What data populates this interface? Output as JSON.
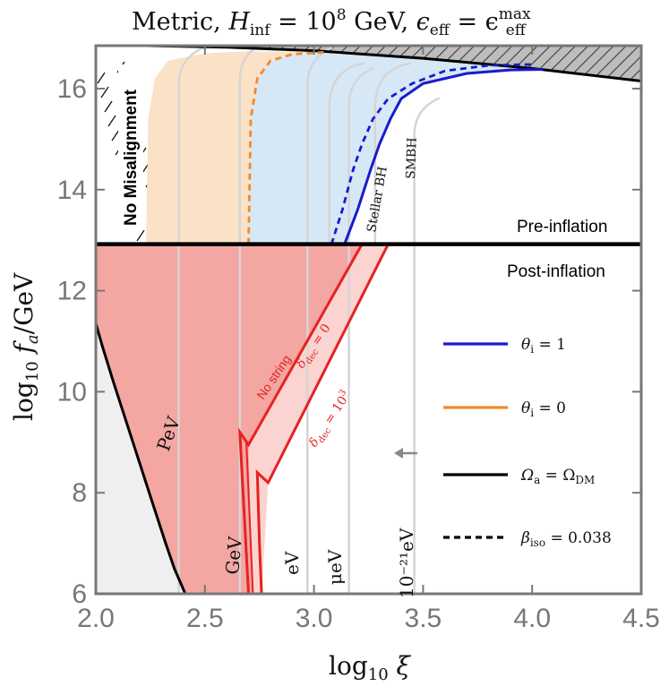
{
  "chart_data": {
    "type": "area",
    "title": "Metric,  H_inf = 10^8 GeV,  ε_eff = ε_eff^max",
    "title_parts": {
      "prefix": "Metric,  ",
      "h": "H",
      "h_sub": "inf",
      "h_eq": " = 10",
      "h_exp": "8",
      "h_unit": " GeV,  ",
      "eps": "ϵ",
      "eps_sub": "eff",
      "eps_eq": " = ϵ",
      "eps_sup": "max",
      "eps_sub2": "eff"
    },
    "xlabel": "log10 ξ",
    "ylabel": "log10 fa/GeV",
    "xlim": [
      2.0,
      4.5
    ],
    "ylim": [
      6,
      16.85
    ],
    "x_ticks": [
      "2.0",
      "2.5",
      "3.0",
      "3.5",
      "4.0",
      "4.5"
    ],
    "x_tick_values": [
      2.0,
      2.5,
      3.0,
      3.5,
      4.0,
      4.5
    ],
    "y_ticks": [
      "6",
      "8",
      "10",
      "12",
      "14",
      "16"
    ],
    "y_tick_values": [
      6,
      8,
      10,
      12,
      14,
      16
    ],
    "grid": false,
    "legend_position": "right",
    "divider_y": 12.92,
    "region_labels": {
      "no_misalignment": "No Misalignment",
      "pre_inflation": "Pre-inflation",
      "post_inflation": "Post-inflation",
      "stellar_bh": "Stellar BH",
      "smbh": "SMBH",
      "no_string": "No string"
    },
    "delta_labels": {
      "d0": "δdec = 0",
      "d3": "δdec = 10³"
    },
    "mass_labels": [
      "PeV",
      "GeV",
      "eV",
      "μeV",
      "10⁻²¹eV"
    ],
    "mass_contours": [
      {
        "label": "PeV",
        "x": [
          1.99,
          2.03,
          2.08,
          2.14,
          2.2,
          2.26,
          2.32,
          2.36,
          2.41
        ],
        "y": [
          11.5,
          10.9,
          10.2,
          9.4,
          8.6,
          7.8,
          7.0,
          6.5,
          6.0
        ]
      },
      {
        "label": "GeV",
        "x": [
          2.65,
          2.655,
          2.66,
          2.665,
          2.67
        ],
        "y": [
          6.0,
          6.7,
          7.4,
          8.2,
          9.0
        ]
      },
      {
        "label": "eV",
        "x": [
          2.97,
          2.97
        ],
        "y": [
          6.0,
          16.85
        ]
      },
      {
        "label": "μeV",
        "x": [
          3.16,
          3.16
        ],
        "y": [
          6.0,
          16.85
        ]
      },
      {
        "label": "10⁻²¹eV",
        "x": [
          3.46,
          3.46
        ],
        "y": [
          6.0,
          16.85
        ]
      }
    ],
    "omega_dm_line": {
      "x": [
        2.23,
        2.6,
        3.0,
        3.5,
        4.0,
        4.5
      ],
      "y": [
        16.85,
        16.82,
        16.75,
        16.6,
        16.4,
        16.15
      ]
    },
    "theta_1": {
      "solid": {
        "x": [
          3.14,
          3.2,
          3.26,
          3.3,
          3.35,
          3.4,
          3.5,
          3.7,
          3.9,
          4.05
        ],
        "y": [
          12.92,
          13.6,
          14.4,
          14.9,
          15.4,
          15.8,
          16.1,
          16.3,
          16.37,
          16.38
        ]
      },
      "dashed": {
        "x": [
          3.08,
          3.13,
          3.18,
          3.22,
          3.27,
          3.34,
          3.45,
          3.6,
          3.8,
          4.0
        ],
        "y": [
          12.92,
          13.6,
          14.4,
          14.9,
          15.4,
          15.8,
          16.1,
          16.35,
          16.46,
          16.48
        ]
      }
    },
    "theta_0": {
      "fill_edge": {
        "x": [
          2.23,
          2.24,
          2.27,
          2.33,
          2.5,
          2.7
        ],
        "y": [
          12.92,
          15.4,
          16.2,
          16.55,
          16.7,
          16.74
        ]
      },
      "dashed": {
        "x": [
          2.7,
          2.71,
          2.74,
          2.8,
          2.9,
          3.05
        ],
        "y": [
          12.92,
          15.4,
          16.2,
          16.55,
          16.68,
          16.72
        ]
      }
    },
    "no_string_region": {
      "top": {
        "x": [
          2.0,
          3.22
        ],
        "y": [
          12.92,
          12.92
        ]
      },
      "diag": {
        "x": [
          3.22,
          2.7
        ],
        "y": [
          12.92,
          8.95
        ]
      },
      "bottom_right": {
        "x": [
          2.72,
          2.7
        ],
        "y": [
          6.0,
          8.95
        ]
      }
    },
    "delta_region": {
      "diag_upper": {
        "x": [
          3.22,
          2.7
        ],
        "y": [
          12.92,
          8.95
        ]
      },
      "diag_lower": {
        "x": [
          3.34,
          2.79
        ],
        "y": [
          12.92,
          8.2
        ]
      },
      "vertical_left": {
        "x": [
          2.72,
          2.74
        ],
        "y": [
          6.0,
          8.95
        ]
      },
      "vertical_right": {
        "x": [
          2.74,
          2.79
        ],
        "y": [
          6.0,
          8.2
        ]
      }
    },
    "legend": [
      {
        "label": "θi = 1",
        "sym": "θ",
        "sub": "i",
        "eq": " = 1",
        "color": "#1a1acc",
        "style": "solid"
      },
      {
        "label": "θi = 0",
        "sym": "θ",
        "sub": "i",
        "eq": " = 0",
        "color": "#f08a2c",
        "style": "solid"
      },
      {
        "label": "Ωa = ΩDM",
        "sym": "Ω",
        "sub": "a",
        "eq": " = Ω",
        "sub2": "DM",
        "color": "#000000",
        "style": "solid"
      },
      {
        "label": "βiso = 0.038",
        "sym": "β",
        "sub": "iso",
        "eq": " = 0.038",
        "color": "#000000",
        "style": "dashed"
      }
    ],
    "colors": {
      "blue": "#1a1acc",
      "orange": "#f08a2c",
      "red": "#e52222",
      "red_fill": "#f4a6a2",
      "pink_fill": "#fbd3d0",
      "light_blue_fill": "#d6e8f6",
      "peach_fill": "#fbe1c6",
      "gray_fill": "#efefef",
      "axis": "#777777"
    },
    "arrow": "left"
  }
}
